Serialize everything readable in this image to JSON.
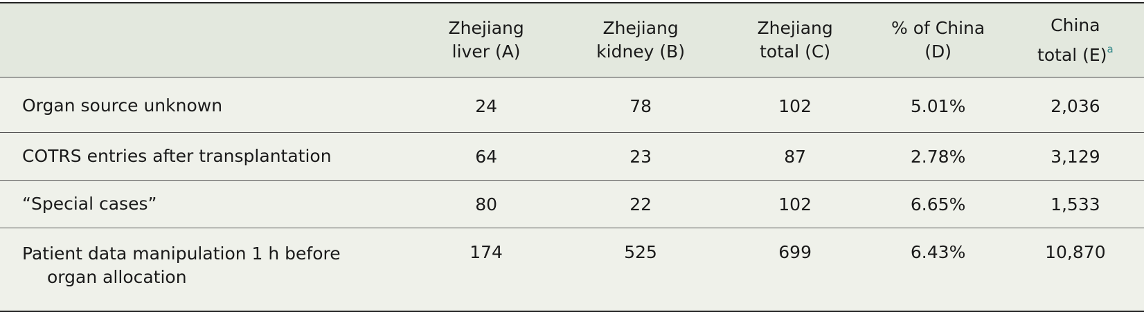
{
  "table": {
    "header": [
      [
        "Zhejiang",
        "liver (A)"
      ],
      [
        "Zhejiang",
        "kidney (B)"
      ],
      [
        "Zhejiang",
        "total (C)"
      ],
      [
        "% of China",
        "(D)"
      ],
      [
        "China",
        "total (E)"
      ]
    ],
    "footnote_marker": "a",
    "rows": [
      [
        "Organ source unknown",
        "24",
        "78",
        "102",
        "5.01%",
        "2,036"
      ],
      [
        "COTRS entries after transplantation",
        "64",
        "23",
        "87",
        "2.78%",
        "3,129"
      ],
      [
        "“Special cases”",
        "80",
        "22",
        "102",
        "6.65%",
        "1,533"
      ],
      [
        "Patient data manipulation 1 h before organ allocation",
        "174",
        "525",
        "699",
        "6.43%",
        "10,870"
      ]
    ]
  }
}
